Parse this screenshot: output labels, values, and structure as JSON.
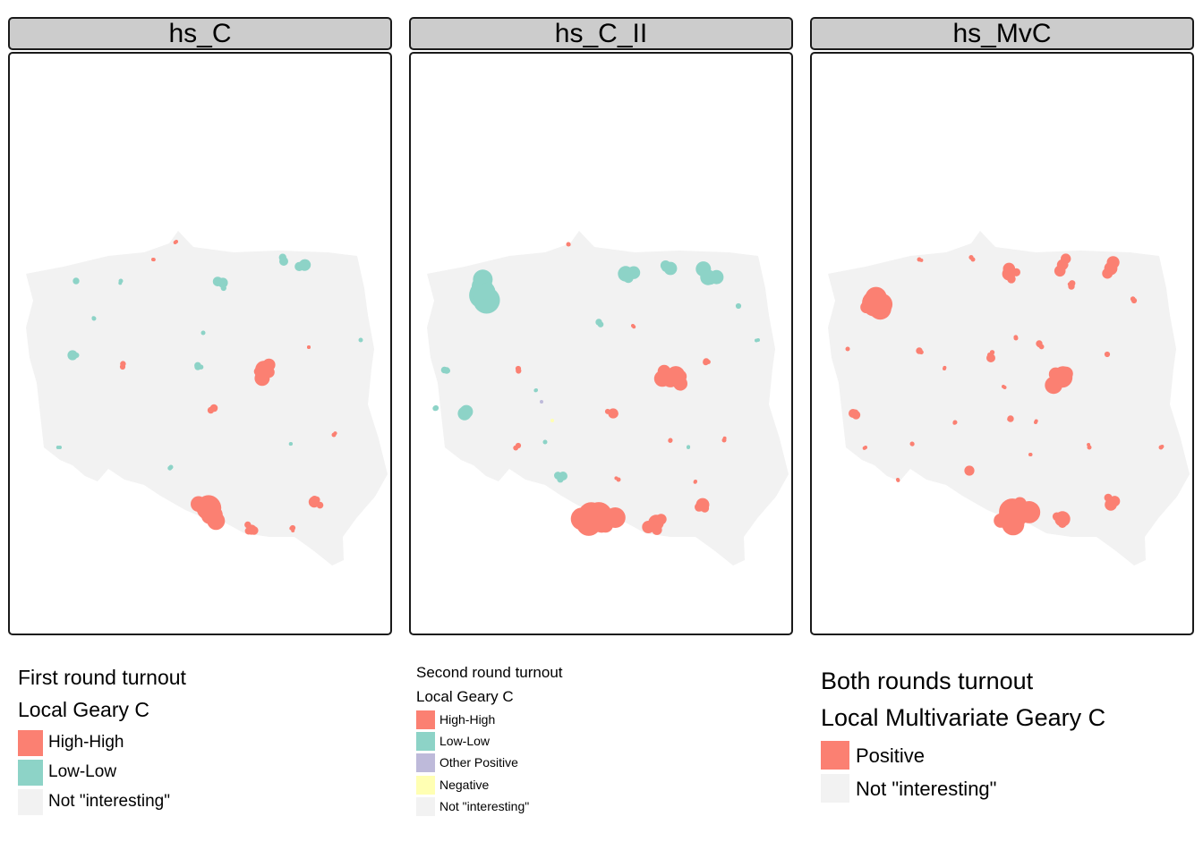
{
  "colors": {
    "high_high": "#FB8072",
    "low_low": "#8DD3C7",
    "other_positive": "#BEBADA",
    "negative": "#FFFFB3",
    "not_interesting": "#F2F2F2",
    "strip_bg": "#CCCCCC"
  },
  "panels": [
    {
      "strip": "hs_C",
      "legend": {
        "title_line1": "First round turnout",
        "title_line2": "Local Geary C",
        "items": [
          {
            "label": "High-High",
            "color": "#FB8072"
          },
          {
            "label": "Low-Low",
            "color": "#8DD3C7"
          },
          {
            "label": "Not \"interesting\"",
            "color": "#F2F2F2"
          }
        ]
      }
    },
    {
      "strip": "hs_C_II",
      "legend": {
        "title_line1": "Second round turnout",
        "title_line2": "Local Geary C",
        "items": [
          {
            "label": "High-High",
            "color": "#FB8072"
          },
          {
            "label": "Low-Low",
            "color": "#8DD3C7"
          },
          {
            "label": "Other Positive",
            "color": "#BEBADA"
          },
          {
            "label": "Negative",
            "color": "#FFFFB3"
          },
          {
            "label": "Not \"interesting\"",
            "color": "#F2F2F2"
          }
        ]
      }
    },
    {
      "strip": "hs_MvC",
      "legend": {
        "title_line1": "Both rounds turnout",
        "title_line2": "Local Multivariate Geary C",
        "items": [
          {
            "label": "Positive",
            "color": "#FB8072"
          },
          {
            "label": "Not \"interesting\"",
            "color": "#F2F2F2"
          }
        ]
      }
    }
  ]
}
